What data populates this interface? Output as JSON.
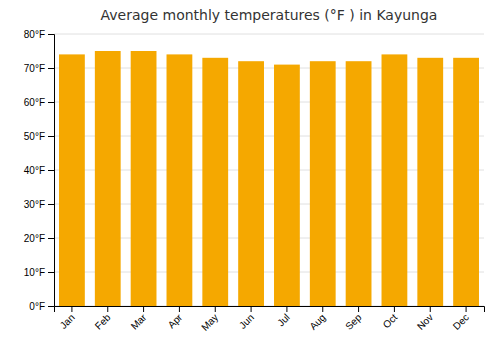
{
  "chart_data": {
    "type": "bar",
    "title": "Average monthly temperatures (°F ) in Kayunga",
    "categories": [
      "Jan",
      "Feb",
      "Mar",
      "Apr",
      "May",
      "Jun",
      "Jul",
      "Aug",
      "Sep",
      "Oct",
      "Nov",
      "Dec"
    ],
    "values": [
      74,
      75,
      75,
      74,
      73,
      72,
      71,
      72,
      72,
      74,
      73,
      73
    ],
    "color": "#F5A800",
    "ylim": [
      0,
      80
    ],
    "yticks": [
      {
        "value": 0,
        "label": "0°F"
      },
      {
        "value": 10,
        "label": "10°F"
      },
      {
        "value": 20,
        "label": "20°F"
      },
      {
        "value": 30,
        "label": "30°F"
      },
      {
        "value": 40,
        "label": "40°F"
      },
      {
        "value": 50,
        "label": "50°F"
      },
      {
        "value": 60,
        "label": "60°F"
      },
      {
        "value": 70,
        "label": "70°F"
      },
      {
        "value": 80,
        "label": "80°F"
      }
    ],
    "grid": true
  }
}
